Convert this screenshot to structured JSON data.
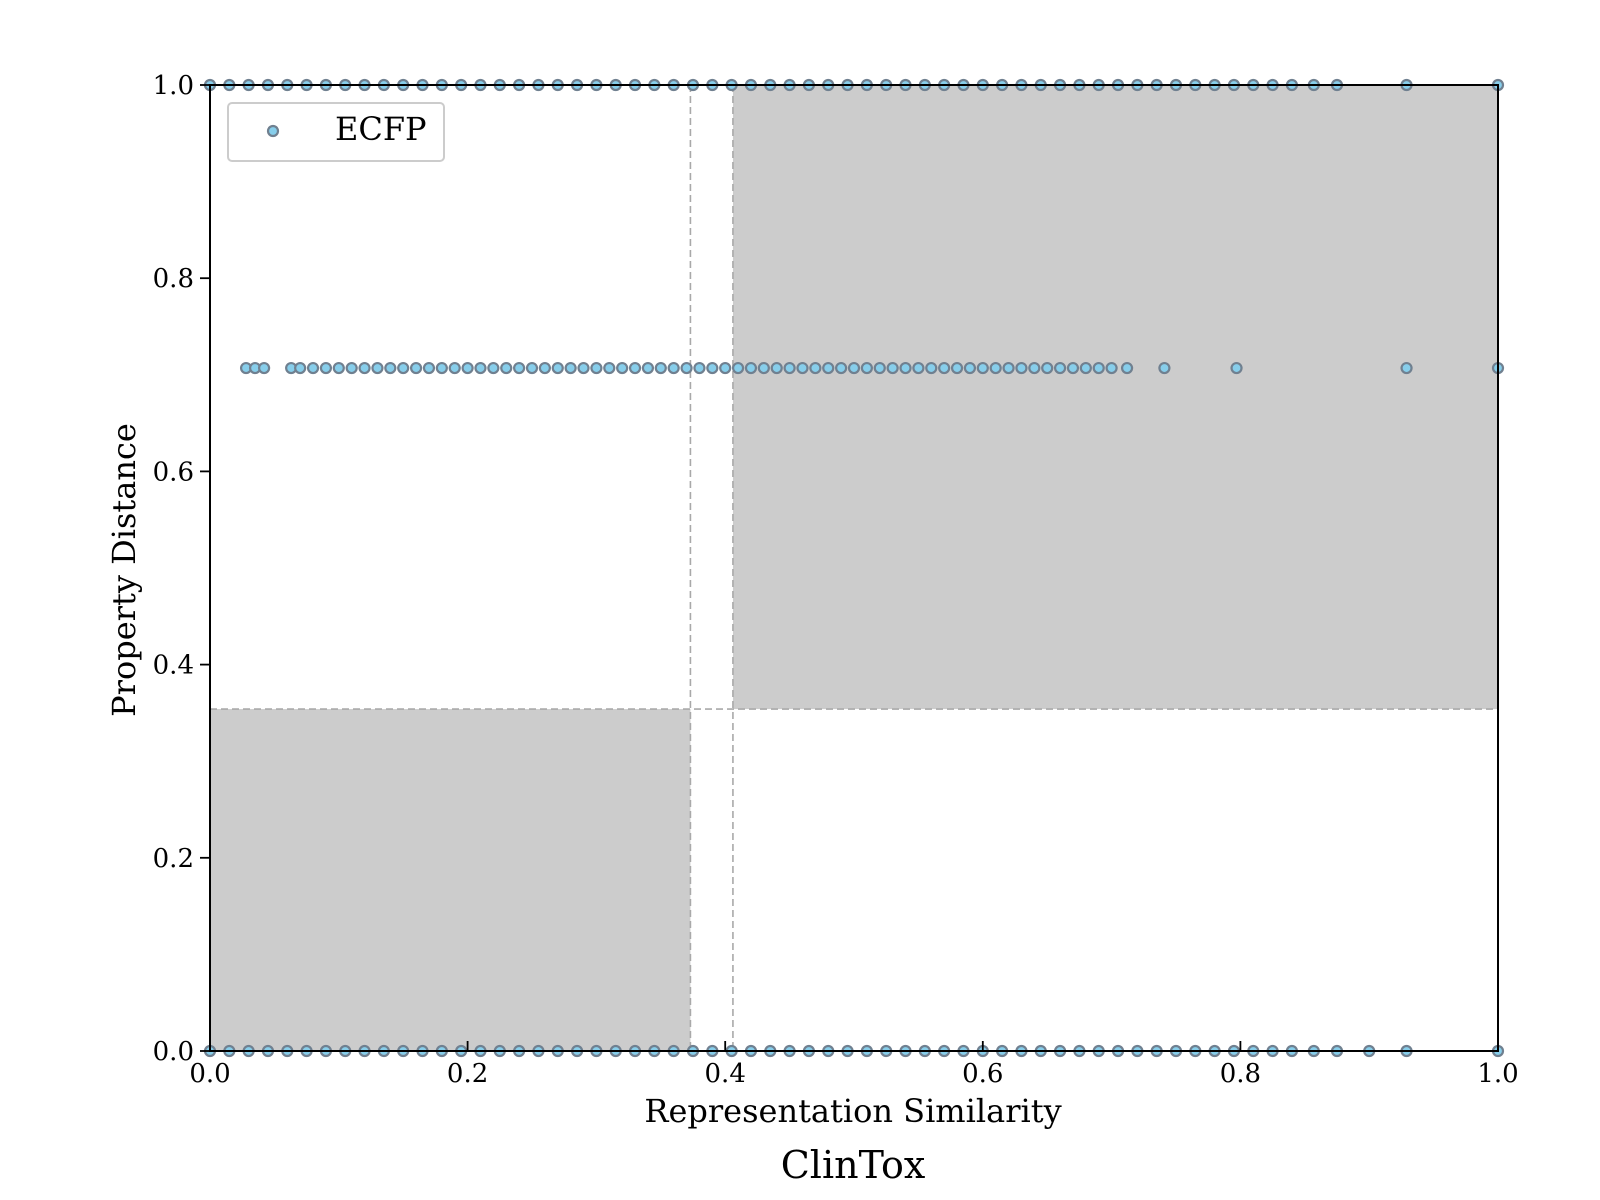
{
  "chart_data": {
    "type": "scatter",
    "title": "ClinTox",
    "xlabel": "Representation Similarity",
    "ylabel": "Property Distance",
    "xlim": [
      0.0,
      1.0
    ],
    "ylim": [
      0.0,
      1.0
    ],
    "xticks": [
      0.0,
      0.2,
      0.4,
      0.6,
      0.8,
      1.0
    ],
    "yticks": [
      0.0,
      0.2,
      0.4,
      0.6,
      0.8,
      1.0
    ],
    "xtick_labels": [
      "0.0",
      "0.2",
      "0.4",
      "0.6",
      "0.8",
      "1.0"
    ],
    "ytick_labels": [
      "0.0",
      "0.2",
      "0.4",
      "0.6",
      "0.8",
      "1.0"
    ],
    "grid": false,
    "legend": {
      "position": "top-left",
      "entries": [
        "ECFP"
      ]
    },
    "colors": {
      "marker_fill": "#87ceeb",
      "marker_edge": "#708090",
      "shade": "#cccccc",
      "threshold_line": "#a9a9a9"
    },
    "thresholds": {
      "x_low": 0.373,
      "x_high": 0.406,
      "y": 0.354
    },
    "shaded_regions": [
      {
        "x": [
          0.0,
          0.373
        ],
        "y": [
          0.0,
          0.354
        ]
      },
      {
        "x": [
          0.406,
          1.0
        ],
        "y": [
          0.354,
          1.0
        ]
      }
    ],
    "series": [
      {
        "name": "ECFP",
        "points": [
          {
            "x": 0.0,
            "y": 1.0
          },
          {
            "x": 0.015,
            "y": 1.0
          },
          {
            "x": 0.03,
            "y": 1.0
          },
          {
            "x": 0.045,
            "y": 1.0
          },
          {
            "x": 0.06,
            "y": 1.0
          },
          {
            "x": 0.075,
            "y": 1.0
          },
          {
            "x": 0.09,
            "y": 1.0
          },
          {
            "x": 0.105,
            "y": 1.0
          },
          {
            "x": 0.12,
            "y": 1.0
          },
          {
            "x": 0.135,
            "y": 1.0
          },
          {
            "x": 0.15,
            "y": 1.0
          },
          {
            "x": 0.165,
            "y": 1.0
          },
          {
            "x": 0.18,
            "y": 1.0
          },
          {
            "x": 0.195,
            "y": 1.0
          },
          {
            "x": 0.21,
            "y": 1.0
          },
          {
            "x": 0.225,
            "y": 1.0
          },
          {
            "x": 0.24,
            "y": 1.0
          },
          {
            "x": 0.255,
            "y": 1.0
          },
          {
            "x": 0.27,
            "y": 1.0
          },
          {
            "x": 0.285,
            "y": 1.0
          },
          {
            "x": 0.3,
            "y": 1.0
          },
          {
            "x": 0.315,
            "y": 1.0
          },
          {
            "x": 0.33,
            "y": 1.0
          },
          {
            "x": 0.345,
            "y": 1.0
          },
          {
            "x": 0.36,
            "y": 1.0
          },
          {
            "x": 0.375,
            "y": 1.0
          },
          {
            "x": 0.39,
            "y": 1.0
          },
          {
            "x": 0.405,
            "y": 1.0
          },
          {
            "x": 0.42,
            "y": 1.0
          },
          {
            "x": 0.435,
            "y": 1.0
          },
          {
            "x": 0.45,
            "y": 1.0
          },
          {
            "x": 0.465,
            "y": 1.0
          },
          {
            "x": 0.48,
            "y": 1.0
          },
          {
            "x": 0.495,
            "y": 1.0
          },
          {
            "x": 0.51,
            "y": 1.0
          },
          {
            "x": 0.525,
            "y": 1.0
          },
          {
            "x": 0.54,
            "y": 1.0
          },
          {
            "x": 0.555,
            "y": 1.0
          },
          {
            "x": 0.57,
            "y": 1.0
          },
          {
            "x": 0.585,
            "y": 1.0
          },
          {
            "x": 0.6,
            "y": 1.0
          },
          {
            "x": 0.615,
            "y": 1.0
          },
          {
            "x": 0.63,
            "y": 1.0
          },
          {
            "x": 0.645,
            "y": 1.0
          },
          {
            "x": 0.66,
            "y": 1.0
          },
          {
            "x": 0.675,
            "y": 1.0
          },
          {
            "x": 0.69,
            "y": 1.0
          },
          {
            "x": 0.705,
            "y": 1.0
          },
          {
            "x": 0.72,
            "y": 1.0
          },
          {
            "x": 0.735,
            "y": 1.0
          },
          {
            "x": 0.75,
            "y": 1.0
          },
          {
            "x": 0.765,
            "y": 1.0
          },
          {
            "x": 0.78,
            "y": 1.0
          },
          {
            "x": 0.795,
            "y": 1.0
          },
          {
            "x": 0.81,
            "y": 1.0
          },
          {
            "x": 0.825,
            "y": 1.0
          },
          {
            "x": 0.84,
            "y": 1.0
          },
          {
            "x": 0.857,
            "y": 1.0
          },
          {
            "x": 0.875,
            "y": 1.0
          },
          {
            "x": 0.929,
            "y": 1.0
          },
          {
            "x": 1.0,
            "y": 1.0
          },
          {
            "x": 0.028,
            "y": 0.707
          },
          {
            "x": 0.035,
            "y": 0.707
          },
          {
            "x": 0.042,
            "y": 0.707
          },
          {
            "x": 0.063,
            "y": 0.707
          },
          {
            "x": 0.07,
            "y": 0.707
          },
          {
            "x": 0.08,
            "y": 0.707
          },
          {
            "x": 0.09,
            "y": 0.707
          },
          {
            "x": 0.1,
            "y": 0.707
          },
          {
            "x": 0.11,
            "y": 0.707
          },
          {
            "x": 0.12,
            "y": 0.707
          },
          {
            "x": 0.13,
            "y": 0.707
          },
          {
            "x": 0.14,
            "y": 0.707
          },
          {
            "x": 0.15,
            "y": 0.707
          },
          {
            "x": 0.16,
            "y": 0.707
          },
          {
            "x": 0.17,
            "y": 0.707
          },
          {
            "x": 0.18,
            "y": 0.707
          },
          {
            "x": 0.19,
            "y": 0.707
          },
          {
            "x": 0.2,
            "y": 0.707
          },
          {
            "x": 0.21,
            "y": 0.707
          },
          {
            "x": 0.22,
            "y": 0.707
          },
          {
            "x": 0.23,
            "y": 0.707
          },
          {
            "x": 0.24,
            "y": 0.707
          },
          {
            "x": 0.25,
            "y": 0.707
          },
          {
            "x": 0.26,
            "y": 0.707
          },
          {
            "x": 0.27,
            "y": 0.707
          },
          {
            "x": 0.28,
            "y": 0.707
          },
          {
            "x": 0.29,
            "y": 0.707
          },
          {
            "x": 0.3,
            "y": 0.707
          },
          {
            "x": 0.31,
            "y": 0.707
          },
          {
            "x": 0.32,
            "y": 0.707
          },
          {
            "x": 0.33,
            "y": 0.707
          },
          {
            "x": 0.34,
            "y": 0.707
          },
          {
            "x": 0.35,
            "y": 0.707
          },
          {
            "x": 0.36,
            "y": 0.707
          },
          {
            "x": 0.37,
            "y": 0.707
          },
          {
            "x": 0.38,
            "y": 0.707
          },
          {
            "x": 0.39,
            "y": 0.707
          },
          {
            "x": 0.4,
            "y": 0.707
          },
          {
            "x": 0.41,
            "y": 0.707
          },
          {
            "x": 0.42,
            "y": 0.707
          },
          {
            "x": 0.43,
            "y": 0.707
          },
          {
            "x": 0.44,
            "y": 0.707
          },
          {
            "x": 0.45,
            "y": 0.707
          },
          {
            "x": 0.46,
            "y": 0.707
          },
          {
            "x": 0.47,
            "y": 0.707
          },
          {
            "x": 0.48,
            "y": 0.707
          },
          {
            "x": 0.49,
            "y": 0.707
          },
          {
            "x": 0.5,
            "y": 0.707
          },
          {
            "x": 0.51,
            "y": 0.707
          },
          {
            "x": 0.52,
            "y": 0.707
          },
          {
            "x": 0.53,
            "y": 0.707
          },
          {
            "x": 0.54,
            "y": 0.707
          },
          {
            "x": 0.55,
            "y": 0.707
          },
          {
            "x": 0.56,
            "y": 0.707
          },
          {
            "x": 0.57,
            "y": 0.707
          },
          {
            "x": 0.58,
            "y": 0.707
          },
          {
            "x": 0.59,
            "y": 0.707
          },
          {
            "x": 0.6,
            "y": 0.707
          },
          {
            "x": 0.61,
            "y": 0.707
          },
          {
            "x": 0.62,
            "y": 0.707
          },
          {
            "x": 0.63,
            "y": 0.707
          },
          {
            "x": 0.64,
            "y": 0.707
          },
          {
            "x": 0.65,
            "y": 0.707
          },
          {
            "x": 0.66,
            "y": 0.707
          },
          {
            "x": 0.67,
            "y": 0.707
          },
          {
            "x": 0.68,
            "y": 0.707
          },
          {
            "x": 0.69,
            "y": 0.707
          },
          {
            "x": 0.7,
            "y": 0.707
          },
          {
            "x": 0.712,
            "y": 0.707
          },
          {
            "x": 0.741,
            "y": 0.707
          },
          {
            "x": 0.797,
            "y": 0.707
          },
          {
            "x": 0.929,
            "y": 0.707
          },
          {
            "x": 1.0,
            "y": 0.707
          },
          {
            "x": 0.0,
            "y": 0.0
          },
          {
            "x": 0.015,
            "y": 0.0
          },
          {
            "x": 0.03,
            "y": 0.0
          },
          {
            "x": 0.045,
            "y": 0.0
          },
          {
            "x": 0.06,
            "y": 0.0
          },
          {
            "x": 0.075,
            "y": 0.0
          },
          {
            "x": 0.09,
            "y": 0.0
          },
          {
            "x": 0.105,
            "y": 0.0
          },
          {
            "x": 0.12,
            "y": 0.0
          },
          {
            "x": 0.135,
            "y": 0.0
          },
          {
            "x": 0.15,
            "y": 0.0
          },
          {
            "x": 0.165,
            "y": 0.0
          },
          {
            "x": 0.18,
            "y": 0.0
          },
          {
            "x": 0.195,
            "y": 0.0
          },
          {
            "x": 0.21,
            "y": 0.0
          },
          {
            "x": 0.225,
            "y": 0.0
          },
          {
            "x": 0.24,
            "y": 0.0
          },
          {
            "x": 0.255,
            "y": 0.0
          },
          {
            "x": 0.27,
            "y": 0.0
          },
          {
            "x": 0.285,
            "y": 0.0
          },
          {
            "x": 0.3,
            "y": 0.0
          },
          {
            "x": 0.315,
            "y": 0.0
          },
          {
            "x": 0.33,
            "y": 0.0
          },
          {
            "x": 0.345,
            "y": 0.0
          },
          {
            "x": 0.36,
            "y": 0.0
          },
          {
            "x": 0.375,
            "y": 0.0
          },
          {
            "x": 0.39,
            "y": 0.0
          },
          {
            "x": 0.405,
            "y": 0.0
          },
          {
            "x": 0.42,
            "y": 0.0
          },
          {
            "x": 0.435,
            "y": 0.0
          },
          {
            "x": 0.45,
            "y": 0.0
          },
          {
            "x": 0.465,
            "y": 0.0
          },
          {
            "x": 0.48,
            "y": 0.0
          },
          {
            "x": 0.495,
            "y": 0.0
          },
          {
            "x": 0.51,
            "y": 0.0
          },
          {
            "x": 0.525,
            "y": 0.0
          },
          {
            "x": 0.54,
            "y": 0.0
          },
          {
            "x": 0.555,
            "y": 0.0
          },
          {
            "x": 0.57,
            "y": 0.0
          },
          {
            "x": 0.585,
            "y": 0.0
          },
          {
            "x": 0.6,
            "y": 0.0
          },
          {
            "x": 0.615,
            "y": 0.0
          },
          {
            "x": 0.63,
            "y": 0.0
          },
          {
            "x": 0.645,
            "y": 0.0
          },
          {
            "x": 0.66,
            "y": 0.0
          },
          {
            "x": 0.675,
            "y": 0.0
          },
          {
            "x": 0.69,
            "y": 0.0
          },
          {
            "x": 0.705,
            "y": 0.0
          },
          {
            "x": 0.72,
            "y": 0.0
          },
          {
            "x": 0.735,
            "y": 0.0
          },
          {
            "x": 0.75,
            "y": 0.0
          },
          {
            "x": 0.765,
            "y": 0.0
          },
          {
            "x": 0.78,
            "y": 0.0
          },
          {
            "x": 0.795,
            "y": 0.0
          },
          {
            "x": 0.81,
            "y": 0.0
          },
          {
            "x": 0.825,
            "y": 0.0
          },
          {
            "x": 0.84,
            "y": 0.0
          },
          {
            "x": 0.857,
            "y": 0.0
          },
          {
            "x": 0.875,
            "y": 0.0
          },
          {
            "x": 0.9,
            "y": 0.0
          },
          {
            "x": 0.929,
            "y": 0.0
          },
          {
            "x": 1.0,
            "y": 0.0
          }
        ]
      }
    ]
  }
}
